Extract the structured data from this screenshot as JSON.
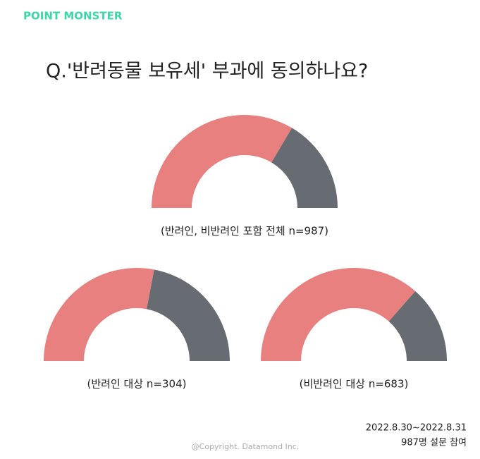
{
  "brand": "POINT MONSTER",
  "title": "Q.'반려동물 보유세' 부과에 동의하나요?",
  "chart_data": [
    {
      "type": "donut",
      "half": true,
      "subtitle": "(반려인, 비반려인 포함 전체 n=987)",
      "values": [
        67,
        33
      ],
      "colors": [
        "#e88080",
        "#676b72"
      ]
    },
    {
      "type": "donut",
      "half": true,
      "subtitle": "(반려인 대상 n=304)",
      "values": [
        56,
        44
      ],
      "colors": [
        "#e88080",
        "#676b72"
      ]
    },
    {
      "type": "donut",
      "half": true,
      "subtitle": "(비반려인 대상 n=683)",
      "values": [
        73,
        27
      ],
      "colors": [
        "#e88080",
        "#676b72"
      ]
    }
  ],
  "date": "2022.8.30~2022.8.31",
  "note": "987명 설문 참여",
  "copyright": "@Copyright. Datamond Inc."
}
